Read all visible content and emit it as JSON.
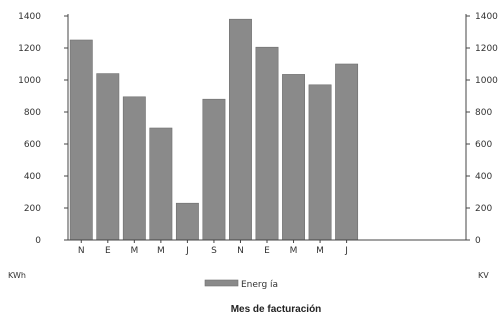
{
  "chart_data": {
    "type": "bar",
    "categories": [
      "N",
      "E",
      "M",
      "M",
      "J",
      "S",
      "N",
      "E",
      "M",
      "M",
      "J"
    ],
    "series": [
      {
        "name": "Energ ía",
        "values": [
          1250,
          1040,
          895,
          700,
          230,
          880,
          1380,
          1205,
          1035,
          970,
          1100
        ]
      }
    ],
    "extra_slots": 4,
    "ylim": [
      0,
      1400
    ],
    "yticks": [
      0,
      200,
      400,
      600,
      800,
      1000,
      1200,
      1400
    ],
    "ytick_labels_left": [
      "0",
      "200",
      "400",
      "600",
      "800",
      "1000",
      "1200",
      "1400"
    ],
    "ytick_labels_right": [
      "0",
      "200",
      "400",
      "600",
      "800",
      "1000",
      "1200",
      "1400"
    ],
    "left_unit": "KWh",
    "right_unit": "KV",
    "xlabel": "Mes de facturación",
    "title": "",
    "grid": false,
    "legend_position": "bottom-center",
    "bar_color": "#8a8a8a",
    "axis_color": "#444444"
  }
}
